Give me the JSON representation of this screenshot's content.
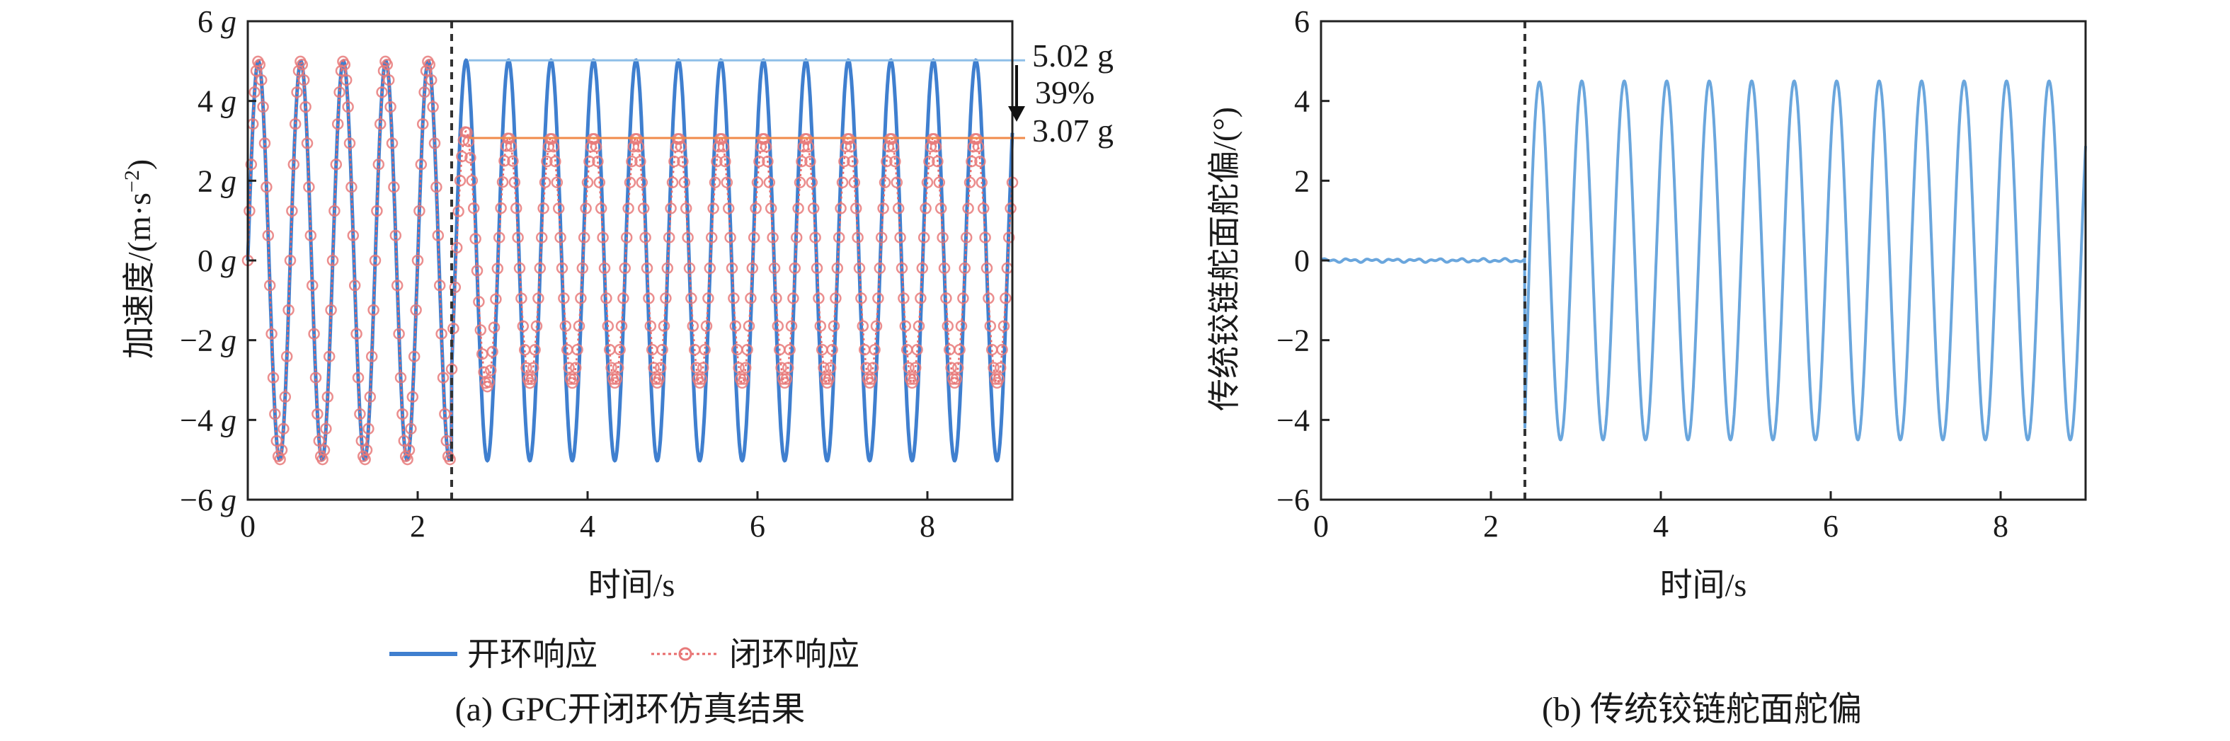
{
  "colors": {
    "open": "#3f7fcf",
    "open_light": "#6aa6dd",
    "closed": "#e86a6a",
    "marker_ring": "#e87a7a",
    "cut": "#333333"
  },
  "chart_data": [
    {
      "type": "line",
      "panel": "a",
      "caption": "(a) GPC开闭环仿真结果",
      "xlabel": "时间/s",
      "ylabel": "加速度/(m·s⁻²)",
      "xlim": [
        0,
        9
      ],
      "ylim": [
        -6,
        6
      ],
      "x_ticks": [
        "0",
        "2",
        "4",
        "6",
        "8"
      ],
      "y_ticks": [
        "6 g",
        "4 g",
        "2 g",
        "0 g",
        "−2 g",
        "−4 g",
        "−6 g"
      ],
      "switch_time": 2.4,
      "series": [
        {
          "name": "开环响应",
          "period": 0.5,
          "amplitude_before": 5.0,
          "amplitude_after": 5.02,
          "style": "solid line"
        },
        {
          "name": "闭环响应",
          "period": 0.5,
          "amplitude_before": 5.0,
          "amplitude_after": 3.07,
          "style": "dotted line with circle markers"
        }
      ],
      "annotations": {
        "open_peak": "5.02 g",
        "closed_peak": "3.07 g",
        "reduction": "39%"
      },
      "legend": {
        "items": [
          "开环响应",
          "闭环响应"
        ],
        "placement": "bottom"
      }
    },
    {
      "type": "line",
      "panel": "b",
      "caption": "(b) 传统铰链舵面舵偏",
      "xlabel": "时间/s",
      "ylabel": "传统铰链舵面舵偏/(°)",
      "xlim": [
        0,
        9
      ],
      "ylim": [
        -6,
        6
      ],
      "x_ticks": [
        "0",
        "2",
        "4",
        "6",
        "8"
      ],
      "y_ticks": [
        "6",
        "4",
        "2",
        "0",
        "−2",
        "−4",
        "−6"
      ],
      "switch_time": 2.4,
      "series": [
        {
          "period": 0.5,
          "amplitude_before": 0.05,
          "amplitude_after": 4.5
        }
      ]
    }
  ]
}
